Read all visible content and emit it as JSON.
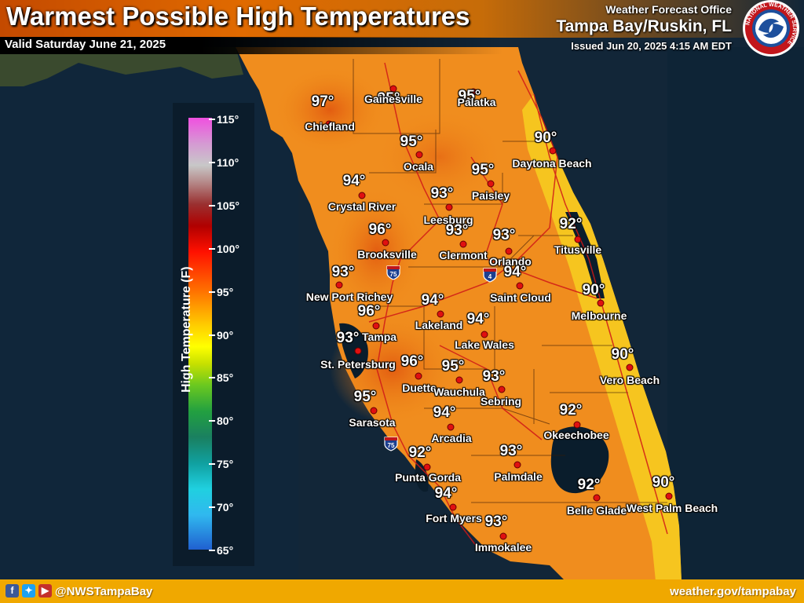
{
  "header": {
    "title": "Warmest Possible High Temperatures",
    "valid": "Valid Saturday June 21, 2025",
    "office_line1": "Weather Forecast Office",
    "office_line2": "Tampa Bay/Ruskin, FL",
    "issued": "Issued Jun 20, 2025 4:15 AM EDT"
  },
  "seal": {
    "text": "NATIONAL WEATHER SERVICE",
    "icon": "nws-seal-icon"
  },
  "legend": {
    "title": "High Temperature (F)",
    "ticks": [
      "115°",
      "110°",
      "105°",
      "100°",
      "95°",
      "90°",
      "85°",
      "80°",
      "75°",
      "70°",
      "65°"
    ],
    "range": [
      65,
      115
    ]
  },
  "cities": [
    {
      "name": "Gainesville",
      "temp": "95°"
    },
    {
      "name": "Palatka",
      "temp": "95°"
    },
    {
      "name": "Chiefland",
      "temp": "97°"
    },
    {
      "name": "Ocala",
      "temp": "95°"
    },
    {
      "name": "Daytona Beach",
      "temp": "90°"
    },
    {
      "name": "Paisley",
      "temp": "95°"
    },
    {
      "name": "Crystal River",
      "temp": "94°"
    },
    {
      "name": "Leesburg",
      "temp": "93°"
    },
    {
      "name": "Brooksville",
      "temp": "96°"
    },
    {
      "name": "Clermont",
      "temp": "93°"
    },
    {
      "name": "Orlando",
      "temp": "93°"
    },
    {
      "name": "Titusville",
      "temp": "92°"
    },
    {
      "name": "New Port Richey",
      "temp": "93°"
    },
    {
      "name": "Saint Cloud",
      "temp": "94°"
    },
    {
      "name": "Melbourne",
      "temp": "90°"
    },
    {
      "name": "Tampa",
      "temp": "96°"
    },
    {
      "name": "Lakeland",
      "temp": "94°"
    },
    {
      "name": "Lake Wales",
      "temp": "94°"
    },
    {
      "name": "St. Petersburg",
      "temp": "93°"
    },
    {
      "name": "Duette",
      "temp": "96°"
    },
    {
      "name": "Wauchula",
      "temp": "95°"
    },
    {
      "name": "Sebring",
      "temp": "93°"
    },
    {
      "name": "Vero Beach",
      "temp": "90°"
    },
    {
      "name": "Sarasota",
      "temp": "95°"
    },
    {
      "name": "Arcadia",
      "temp": "94°"
    },
    {
      "name": "Okeechobee",
      "temp": "92°"
    },
    {
      "name": "Punta Gorda",
      "temp": "92°"
    },
    {
      "name": "Palmdale",
      "temp": "93°"
    },
    {
      "name": "Fort Myers",
      "temp": "94°"
    },
    {
      "name": "Belle Glade",
      "temp": "92°"
    },
    {
      "name": "West Palm Beach",
      "temp": "90°"
    },
    {
      "name": "Immokalee",
      "temp": "93°"
    }
  ],
  "shields": [
    {
      "label": "75"
    },
    {
      "label": "4"
    },
    {
      "label": "75"
    }
  ],
  "footer": {
    "handle": "@NWSTampaBay",
    "site": "weather.gov/tampabay"
  },
  "icons": [
    "facebook-icon",
    "twitter-icon",
    "youtube-icon"
  ],
  "colors": {
    "header": "#e06a00",
    "footer": "#f0a800",
    "dot": "#e01010"
  }
}
